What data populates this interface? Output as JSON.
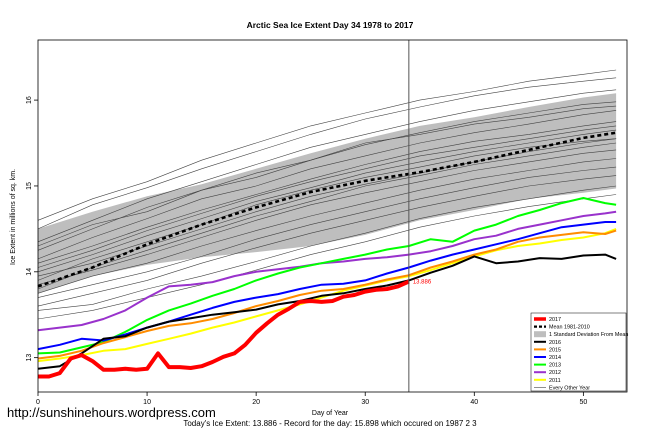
{
  "chart_data": {
    "type": "line",
    "title": "Arctic Sea Ice Extent Day 34 1978 to 2017",
    "xlabel": "Day of Year",
    "ylabel": "Ice Extent in millions of sq. km.",
    "xlim": [
      0,
      54
    ],
    "ylim": [
      12.6,
      16.7
    ],
    "x_ticks": [
      0,
      10,
      20,
      30,
      40,
      50
    ],
    "y_ticks": [
      13,
      14,
      15,
      16
    ],
    "grid": false,
    "legend_position": "bottom-right",
    "current_day_marker": 34,
    "annotation": {
      "text": "13.886",
      "x": 34,
      "y": 13.886
    },
    "band": {
      "name": "1 Standard Deviation From Mean",
      "x": [
        0,
        5,
        10,
        15,
        20,
        25,
        30,
        35,
        40,
        45,
        50,
        53
      ],
      "lower": [
        13.75,
        13.95,
        14.08,
        14.17,
        14.23,
        14.3,
        14.43,
        14.6,
        14.72,
        14.85,
        14.92,
        14.97
      ],
      "upper": [
        14.5,
        14.7,
        14.88,
        15.02,
        15.2,
        15.38,
        15.55,
        15.7,
        15.8,
        15.92,
        16.03,
        16.08
      ]
    },
    "mean": {
      "name": "Mean 1981-2010",
      "x": [
        0,
        5,
        10,
        15,
        20,
        25,
        30,
        35,
        40,
        45,
        50,
        53
      ],
      "values": [
        13.83,
        14.05,
        14.32,
        14.55,
        14.75,
        14.93,
        15.06,
        15.16,
        15.28,
        15.42,
        15.56,
        15.62
      ]
    },
    "series": [
      {
        "name": "2017",
        "color": "#ff0000",
        "width": 4,
        "x": [
          0,
          1,
          2,
          3,
          4,
          5,
          6,
          7,
          8,
          9,
          10,
          11,
          12,
          13,
          14,
          15,
          16,
          17,
          18,
          19,
          20,
          21,
          22,
          23,
          24,
          25,
          26,
          27,
          28,
          29,
          30,
          31,
          32,
          33,
          34
        ],
        "values": [
          12.78,
          12.78,
          12.82,
          12.99,
          13.03,
          12.96,
          12.86,
          12.86,
          12.87,
          12.86,
          12.87,
          13.05,
          12.89,
          12.89,
          12.88,
          12.9,
          12.95,
          13.01,
          13.05,
          13.15,
          13.29,
          13.4,
          13.5,
          13.57,
          13.65,
          13.66,
          13.65,
          13.66,
          13.71,
          13.73,
          13.77,
          13.79,
          13.8,
          13.83,
          13.886
        ]
      },
      {
        "name": "2016",
        "color": "#000000",
        "width": 2,
        "x": [
          0,
          2,
          4,
          6,
          8,
          10,
          12,
          14,
          16,
          18,
          20,
          22,
          24,
          26,
          28,
          30,
          32,
          34,
          36,
          38,
          40,
          42,
          44,
          46,
          48,
          50,
          52,
          53
        ],
        "values": [
          12.87,
          12.9,
          13.05,
          13.22,
          13.25,
          13.35,
          13.42,
          13.46,
          13.5,
          13.53,
          13.56,
          13.62,
          13.66,
          13.72,
          13.75,
          13.8,
          13.84,
          13.9,
          13.99,
          14.07,
          14.18,
          14.1,
          14.12,
          14.16,
          14.15,
          14.19,
          14.2,
          14.15
        ]
      },
      {
        "name": "2015",
        "color": "#ff8c00",
        "width": 2,
        "x": [
          0,
          2,
          4,
          6,
          8,
          10,
          12,
          14,
          16,
          18,
          20,
          22,
          24,
          26,
          28,
          30,
          32,
          34,
          36,
          38,
          40,
          42,
          44,
          46,
          48,
          50,
          52,
          53
        ],
        "values": [
          12.99,
          13.02,
          13.08,
          13.17,
          13.24,
          13.31,
          13.37,
          13.4,
          13.45,
          13.52,
          13.6,
          13.66,
          13.73,
          13.78,
          13.8,
          13.85,
          13.91,
          13.96,
          14.05,
          14.12,
          14.2,
          14.26,
          14.35,
          14.4,
          14.43,
          14.46,
          14.44,
          14.48
        ]
      },
      {
        "name": "2014",
        "color": "#0000ff",
        "width": 2,
        "x": [
          0,
          2,
          4,
          6,
          8,
          10,
          12,
          14,
          16,
          18,
          20,
          22,
          24,
          26,
          28,
          30,
          32,
          34,
          36,
          38,
          40,
          42,
          44,
          46,
          48,
          50,
          52,
          53
        ],
        "values": [
          13.1,
          13.15,
          13.22,
          13.2,
          13.27,
          13.35,
          13.42,
          13.5,
          13.58,
          13.65,
          13.7,
          13.74,
          13.8,
          13.85,
          13.86,
          13.9,
          13.98,
          14.05,
          14.13,
          14.2,
          14.26,
          14.32,
          14.38,
          14.45,
          14.52,
          14.55,
          14.58,
          14.58
        ]
      },
      {
        "name": "2013",
        "color": "#00ff00",
        "width": 2,
        "x": [
          0,
          2,
          4,
          6,
          8,
          10,
          12,
          14,
          16,
          18,
          20,
          22,
          24,
          26,
          28,
          30,
          32,
          34,
          36,
          38,
          40,
          42,
          44,
          46,
          48,
          50,
          52,
          53
        ],
        "values": [
          13.05,
          13.06,
          13.12,
          13.18,
          13.3,
          13.44,
          13.55,
          13.63,
          13.72,
          13.8,
          13.9,
          13.98,
          14.05,
          14.1,
          14.15,
          14.2,
          14.26,
          14.3,
          14.38,
          14.35,
          14.48,
          14.55,
          14.65,
          14.72,
          14.8,
          14.86,
          14.8,
          14.78
        ]
      },
      {
        "name": "2012",
        "color": "#9932cc",
        "width": 2,
        "x": [
          0,
          2,
          4,
          6,
          8,
          10,
          12,
          14,
          16,
          18,
          20,
          22,
          24,
          26,
          28,
          30,
          32,
          34,
          36,
          38,
          40,
          42,
          44,
          46,
          48,
          50,
          52,
          53
        ],
        "values": [
          13.32,
          13.35,
          13.38,
          13.45,
          13.55,
          13.7,
          13.83,
          13.85,
          13.88,
          13.95,
          14.0,
          14.03,
          14.06,
          14.1,
          14.12,
          14.15,
          14.17,
          14.2,
          14.24,
          14.3,
          14.38,
          14.42,
          14.5,
          14.55,
          14.6,
          14.65,
          14.68,
          14.7
        ]
      },
      {
        "name": "2011",
        "color": "#ffff00",
        "width": 2,
        "x": [
          0,
          2,
          4,
          6,
          8,
          10,
          12,
          14,
          16,
          18,
          20,
          22,
          24,
          26,
          28,
          30,
          32,
          34,
          36,
          38,
          40,
          42,
          44,
          46,
          48,
          50,
          52,
          53
        ],
        "values": [
          12.96,
          12.99,
          13.03,
          13.08,
          13.1,
          13.16,
          13.22,
          13.28,
          13.35,
          13.41,
          13.48,
          13.55,
          13.62,
          13.7,
          13.78,
          13.84,
          13.9,
          13.95,
          14.02,
          14.1,
          14.18,
          14.25,
          14.3,
          14.33,
          14.37,
          14.4,
          14.45,
          14.5
        ]
      }
    ],
    "every_other_year": {
      "name": "Every Other Year",
      "color": "#444444",
      "x": [
        0,
        5,
        10,
        15,
        20,
        25,
        30,
        35,
        40,
        45,
        50,
        53
      ],
      "series": [
        [
          14.6,
          14.85,
          15.05,
          15.3,
          15.5,
          15.7,
          15.85,
          16.0,
          16.1,
          16.22,
          16.3,
          16.35
        ],
        [
          14.5,
          14.78,
          14.98,
          15.2,
          15.4,
          15.6,
          15.78,
          15.92,
          16.05,
          16.15,
          16.22,
          16.26
        ],
        [
          14.35,
          14.6,
          14.85,
          15.05,
          15.25,
          15.45,
          15.6,
          15.75,
          15.88,
          15.98,
          16.08,
          16.12
        ],
        [
          14.25,
          14.5,
          14.75,
          14.95,
          15.1,
          15.3,
          15.48,
          15.62,
          15.75,
          15.85,
          15.95,
          15.98
        ],
        [
          14.15,
          14.4,
          14.62,
          14.85,
          15.0,
          15.2,
          15.35,
          15.5,
          15.62,
          15.72,
          15.83,
          15.88
        ],
        [
          14.1,
          14.3,
          14.52,
          14.72,
          14.9,
          15.08,
          15.25,
          15.4,
          15.52,
          15.6,
          15.7,
          15.75
        ],
        [
          14.0,
          14.2,
          14.42,
          14.62,
          14.82,
          14.98,
          15.15,
          15.28,
          15.4,
          15.5,
          15.6,
          15.65
        ],
        [
          13.95,
          14.1,
          14.3,
          14.5,
          14.7,
          14.88,
          15.02,
          15.15,
          15.28,
          15.4,
          15.5,
          15.55
        ],
        [
          13.85,
          14.02,
          14.2,
          14.4,
          14.6,
          14.78,
          14.92,
          15.05,
          15.18,
          15.28,
          15.38,
          15.42
        ],
        [
          13.75,
          13.95,
          14.1,
          14.3,
          14.48,
          14.65,
          14.8,
          14.95,
          15.08,
          15.18,
          15.28,
          15.32
        ],
        [
          13.7,
          13.85,
          14.0,
          14.18,
          14.38,
          14.55,
          14.7,
          14.85,
          14.98,
          15.1,
          15.18,
          15.22
        ],
        [
          13.6,
          13.75,
          13.9,
          14.1,
          14.28,
          14.45,
          14.6,
          14.75,
          14.88,
          15.0,
          15.08,
          15.12
        ],
        [
          13.55,
          13.62,
          13.8,
          13.95,
          14.12,
          14.3,
          14.45,
          14.62,
          14.75,
          14.85,
          14.95,
          15.0
        ],
        [
          13.45,
          13.55,
          13.7,
          13.85,
          14.02,
          14.2,
          14.35,
          14.52,
          14.65,
          14.76,
          14.85,
          14.9
        ],
        [
          14.3,
          14.55,
          14.7,
          14.95,
          15.15,
          15.3,
          15.5,
          15.6,
          15.72,
          15.8,
          15.9,
          15.93
        ],
        [
          13.9,
          14.15,
          14.35,
          14.55,
          14.78,
          14.95,
          15.1,
          15.22,
          15.35,
          15.45,
          15.52,
          15.55
        ],
        [
          13.8,
          14.05,
          14.25,
          14.45,
          14.65,
          14.82,
          15.0,
          15.12,
          15.25,
          15.35,
          15.45,
          15.5
        ],
        [
          14.05,
          14.25,
          14.48,
          14.68,
          14.88,
          15.05,
          15.2,
          15.35,
          15.45,
          15.55,
          15.65,
          15.7
        ]
      ]
    },
    "legend": [
      {
        "label": "2017",
        "color": "#ff0000",
        "style": "solid-thick"
      },
      {
        "label": "Mean 1981-2010",
        "color": "#000000",
        "style": "dashed"
      },
      {
        "label": "1 Standard Deviation From Mean",
        "color": "#bebebe",
        "style": "box"
      },
      {
        "label": "2016",
        "color": "#000000",
        "style": "solid"
      },
      {
        "label": "2015",
        "color": "#ff8c00",
        "style": "solid"
      },
      {
        "label": "2014",
        "color": "#0000ff",
        "style": "solid"
      },
      {
        "label": "2013",
        "color": "#00ff00",
        "style": "solid"
      },
      {
        "label": "2012",
        "color": "#9932cc",
        "style": "solid"
      },
      {
        "label": "2011",
        "color": "#ffff00",
        "style": "solid"
      },
      {
        "label": "Every Other Year",
        "color": "#444444",
        "style": "thin"
      }
    ]
  },
  "watermark": "http://sunshinehours.wordpress.com",
  "footer": "Today's Ice Extent: 13.886 - Record for the day: 15.898 which occured on 1987 2 3"
}
